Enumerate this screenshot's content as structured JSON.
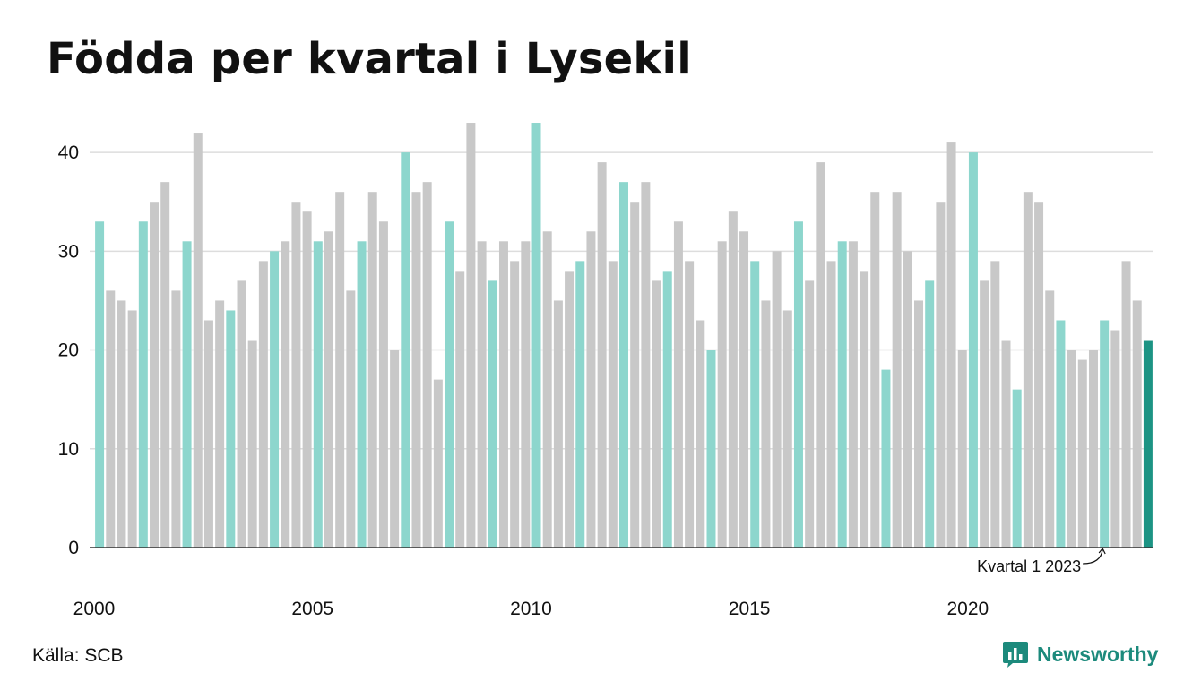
{
  "title": "Födda per kvartal i Lysekil",
  "source": "Källa: SCB",
  "brand": {
    "name": "Newsworthy",
    "icon": "chart-bubble-icon"
  },
  "colors": {
    "q1": "#8dd6cd",
    "other": "#c8c8c8",
    "highlight": "#1c9484",
    "grid": "#dddddd",
    "axis": "#333333",
    "text": "#111111",
    "brand": "#1c8a7c"
  },
  "chart_data": {
    "type": "bar",
    "title": "Födda per kvartal i Lysekil",
    "xlabel": "",
    "ylabel": "",
    "ylim": [
      0,
      44
    ],
    "yticks": [
      0,
      10,
      20,
      30,
      40
    ],
    "grid": true,
    "start": {
      "year": 2000,
      "quarter": 1
    },
    "xtick_labels": [
      "2000",
      "2005",
      "2010",
      "2015",
      "2020"
    ],
    "color_rule": "quarter 1 bars teal, other quarters gray, last bar dark teal",
    "values": [
      33,
      26,
      25,
      24,
      33,
      35,
      37,
      26,
      31,
      42,
      23,
      25,
      24,
      27,
      21,
      29,
      30,
      31,
      35,
      34,
      31,
      32,
      36,
      26,
      31,
      36,
      33,
      20,
      40,
      36,
      37,
      17,
      33,
      28,
      43,
      31,
      27,
      31,
      29,
      31,
      43,
      32,
      25,
      28,
      29,
      32,
      39,
      29,
      37,
      35,
      37,
      27,
      28,
      33,
      29,
      23,
      20,
      31,
      34,
      32,
      29,
      25,
      30,
      24,
      33,
      27,
      39,
      29,
      31,
      31,
      28,
      36,
      18,
      36,
      30,
      25,
      27,
      35,
      41,
      20,
      40,
      27,
      29,
      21,
      16,
      36,
      35,
      26,
      23,
      20,
      19,
      20,
      23,
      22,
      29,
      25,
      21
    ],
    "annotation": {
      "text": "Kvartal 1 2023"
    }
  }
}
